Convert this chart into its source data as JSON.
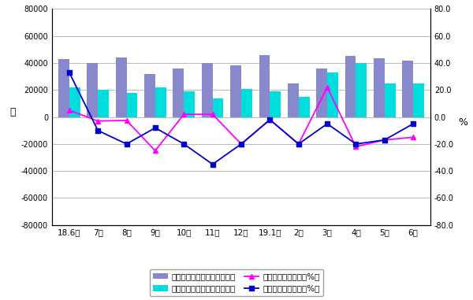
{
  "months": [
    "18.6月",
    "7月",
    "8月",
    "9月",
    "10月",
    "11月",
    "12月",
    "19.1月",
    "2月",
    "3月",
    "4月",
    "5月",
    "6月"
  ],
  "cutting_volume": [
    43000,
    40000,
    44000,
    32000,
    36000,
    40000,
    38500,
    46000,
    25000,
    36000,
    45000,
    43500,
    42000
  ],
  "forming_volume": [
    22000,
    20000,
    18000,
    22000,
    19000,
    13500,
    20500,
    19000,
    15000,
    33000,
    40000,
    25000,
    25000
  ],
  "cutting_yoy": [
    5.0,
    -3.0,
    -2.5,
    -25.0,
    2.0,
    2.0,
    -20.0,
    -2.0,
    -20.0,
    22.0,
    -22.0,
    -17.0,
    -15.0
  ],
  "forming_yoy": [
    33.0,
    -10.0,
    -20.0,
    -8.0,
    -20.0,
    -35.0,
    -20.0,
    -2.0,
    -20.0,
    -5.0,
    -20.0,
    -17.0,
    -5.0
  ],
  "bar_color_cutting": "#8888cc",
  "bar_color_forming": "#00dddd",
  "line_color_cutting": "#ff00ff",
  "line_color_forming": "#0000cc",
  "ylim_left": [
    -80000,
    80000
  ],
  "ylim_right": [
    -80.0,
    80.0
  ],
  "yticks_left": [
    -80000,
    -60000,
    -40000,
    -20000,
    0,
    20000,
    40000,
    60000,
    80000
  ],
  "yticks_right": [
    -80.0,
    -60.0,
    -40.0,
    -20.0,
    0.0,
    20.0,
    40.0,
    60.0,
    80.0
  ],
  "ytick_labels_right": [
    "-80.0",
    "-60.0",
    "-40.0",
    "-20.0",
    "0.0",
    "20.0",
    "40.0",
    "60.0",
    "80.0"
  ],
  "ylabel_left": "台",
  "ylabel_right": "%",
  "legend_labels": [
    "金属切削机床月度产量（台）",
    "金属成形机床月度产量（台）",
    "金属切削机床同比（%）",
    "金属成形机床同比（%）"
  ],
  "background_color": "#ffffff",
  "grid_color": "#b0b0b0",
  "bar_width": 0.38
}
